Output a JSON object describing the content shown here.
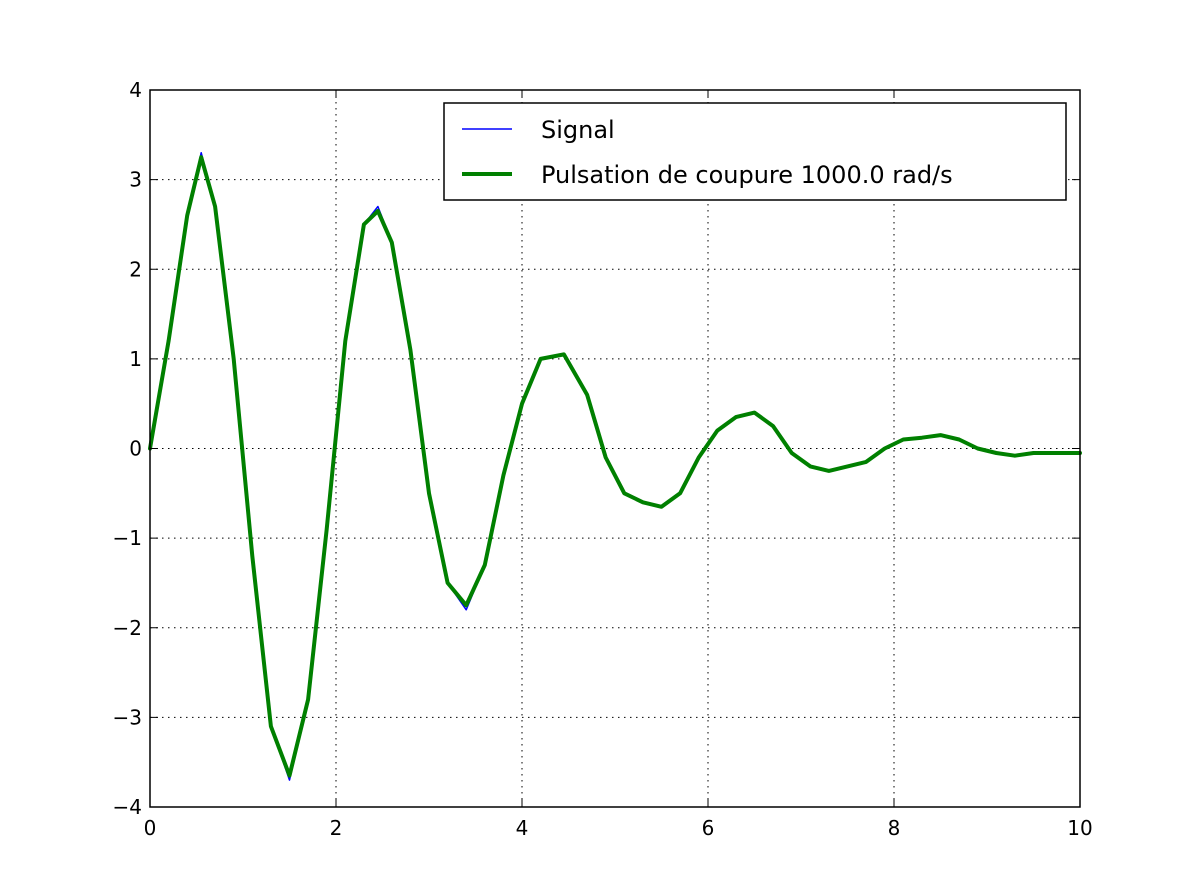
{
  "chart_data": {
    "type": "line",
    "title": "",
    "xlabel": "",
    "ylabel": "",
    "xlim": [
      0,
      10
    ],
    "ylim": [
      -4,
      4
    ],
    "x_ticks": [
      0,
      2,
      4,
      6,
      8,
      10
    ],
    "y_ticks": [
      -4,
      -3,
      -2,
      -1,
      0,
      1,
      2,
      3,
      4
    ],
    "x_tick_labels": [
      "0",
      "2",
      "4",
      "6",
      "8",
      "10"
    ],
    "y_tick_labels": [
      "−4",
      "−3",
      "−2",
      "−1",
      "0",
      "1",
      "2",
      "3",
      "4"
    ],
    "grid": true,
    "legend_position": "top-right",
    "series": [
      {
        "name": "Signal",
        "color": "#0000ff",
        "x": [
          0.0,
          0.2,
          0.4,
          0.55,
          0.7,
          0.9,
          1.1,
          1.3,
          1.5,
          1.7,
          1.9,
          2.1,
          2.3,
          2.45,
          2.6,
          2.8,
          3.0,
          3.2,
          3.4,
          3.6,
          3.8,
          4.0,
          4.2,
          4.45,
          4.7,
          4.9,
          5.1,
          5.3,
          5.5,
          5.7,
          5.9,
          6.1,
          6.3,
          6.5,
          6.7,
          6.9,
          7.1,
          7.3,
          7.5,
          7.7,
          7.9,
          8.1,
          8.3,
          8.5,
          8.7,
          8.9,
          9.1,
          9.3,
          9.5,
          9.7,
          10.0
        ],
        "values": [
          0.0,
          1.2,
          2.6,
          3.3,
          2.7,
          1.0,
          -1.2,
          -3.1,
          -3.7,
          -2.8,
          -0.9,
          1.2,
          2.5,
          2.7,
          2.3,
          1.1,
          -0.5,
          -1.5,
          -1.8,
          -1.3,
          -0.3,
          0.5,
          1.0,
          1.05,
          0.6,
          -0.1,
          -0.5,
          -0.6,
          -0.65,
          -0.5,
          -0.1,
          0.2,
          0.35,
          0.4,
          0.25,
          -0.05,
          -0.2,
          -0.25,
          -0.2,
          -0.15,
          0.0,
          0.1,
          0.12,
          0.15,
          0.1,
          0.0,
          -0.05,
          -0.08,
          -0.05,
          -0.05,
          -0.05
        ]
      },
      {
        "name": "Pulsation de coupure 1000.0 rad/s",
        "color": "#008000",
        "x": [
          0.0,
          0.2,
          0.4,
          0.55,
          0.7,
          0.9,
          1.1,
          1.3,
          1.5,
          1.7,
          1.9,
          2.1,
          2.3,
          2.45,
          2.6,
          2.8,
          3.0,
          3.2,
          3.4,
          3.6,
          3.8,
          4.0,
          4.2,
          4.45,
          4.7,
          4.9,
          5.1,
          5.3,
          5.5,
          5.7,
          5.9,
          6.1,
          6.3,
          6.5,
          6.7,
          6.9,
          7.1,
          7.3,
          7.5,
          7.7,
          7.9,
          8.1,
          8.3,
          8.5,
          8.7,
          8.9,
          9.1,
          9.3,
          9.5,
          9.7,
          10.0
        ],
        "values": [
          0.0,
          1.2,
          2.6,
          3.25,
          2.7,
          1.0,
          -1.2,
          -3.1,
          -3.65,
          -2.8,
          -0.9,
          1.2,
          2.5,
          2.65,
          2.3,
          1.1,
          -0.5,
          -1.5,
          -1.75,
          -1.3,
          -0.3,
          0.5,
          1.0,
          1.05,
          0.6,
          -0.1,
          -0.5,
          -0.6,
          -0.65,
          -0.5,
          -0.1,
          0.2,
          0.35,
          0.4,
          0.25,
          -0.05,
          -0.2,
          -0.25,
          -0.2,
          -0.15,
          0.0,
          0.1,
          0.12,
          0.15,
          0.1,
          0.0,
          -0.05,
          -0.08,
          -0.05,
          -0.05,
          -0.05
        ]
      }
    ]
  }
}
